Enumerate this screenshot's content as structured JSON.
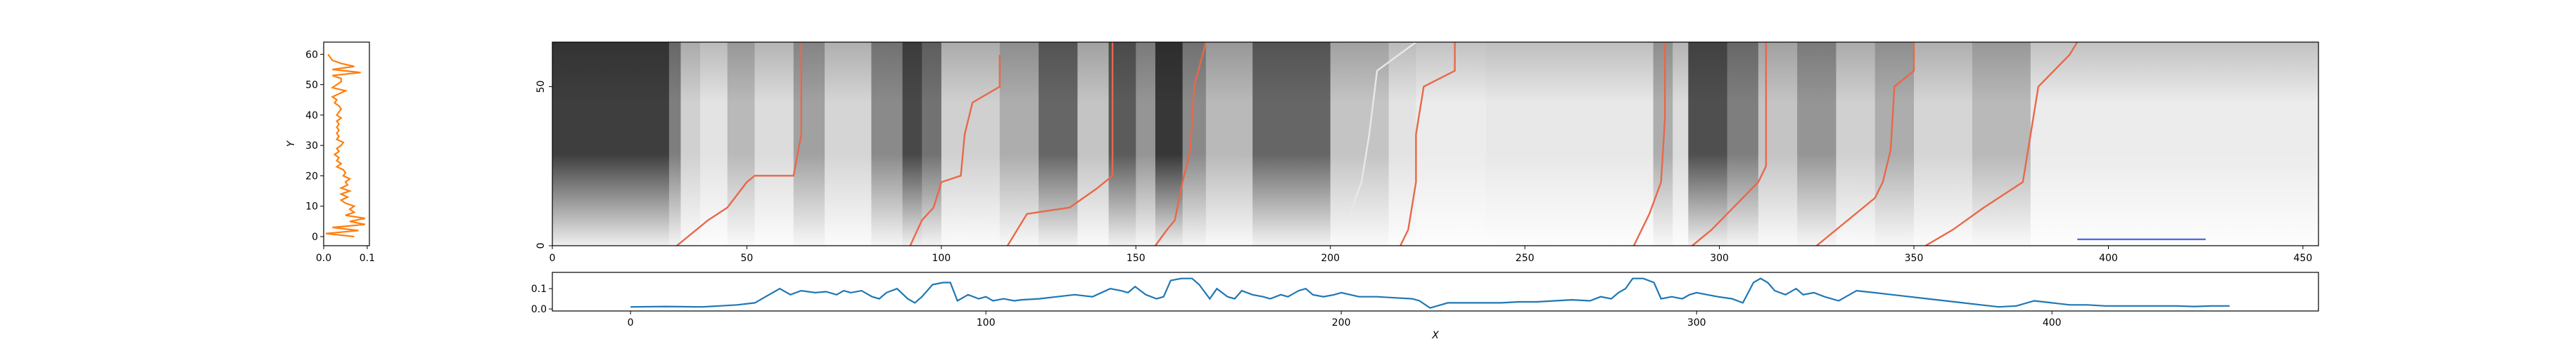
{
  "chart_data": [
    {
      "type": "line",
      "panel": "left marginal profile",
      "orientation": "vertical",
      "ylabel": "Y",
      "xlabel": "",
      "xlim": [
        0.0,
        0.105
      ],
      "ylim": [
        -3,
        64
      ],
      "xticks": [
        "0.0",
        "0.1"
      ],
      "yticks": [
        "0",
        "10",
        "20",
        "30",
        "40",
        "50",
        "60"
      ],
      "color": "#ff7f0e",
      "series": [
        {
          "x": [
            0.07,
            0.005,
            0.08,
            0.02,
            0.095,
            0.06,
            0.095,
            0.05,
            0.07,
            0.06,
            0.07,
            0.05,
            0.04,
            0.055,
            0.04,
            0.06,
            0.04,
            0.055,
            0.05,
            0.06,
            0.045,
            0.05,
            0.045,
            0.03,
            0.04,
            0.03,
            0.035,
            0.025,
            0.035,
            0.03,
            0.04,
            0.045,
            0.03,
            0.035,
            0.03,
            0.035,
            0.03,
            0.035,
            0.03,
            0.04,
            0.03,
            0.035,
            0.04,
            0.035,
            0.025,
            0.03,
            0.02,
            0.035,
            0.05,
            0.02,
            0.03,
            0.04,
            0.04,
            0.02,
            0.085,
            0.02,
            0.07,
            0.04,
            0.02,
            0.015,
            0.01
          ],
          "y": [
            0,
            1,
            2,
            3,
            4,
            5,
            6,
            7,
            8,
            9,
            10,
            11,
            12,
            13,
            14,
            15,
            16,
            17,
            18,
            19,
            20,
            21,
            22,
            23,
            24,
            25,
            26,
            27,
            28,
            29,
            30,
            31,
            32,
            33,
            34,
            35,
            36,
            37,
            38,
            39,
            40,
            41,
            42,
            43,
            44,
            45,
            46,
            47,
            48,
            49,
            50,
            51,
            52,
            53,
            54,
            55,
            56,
            57,
            58,
            59,
            60
          ]
        }
      ]
    },
    {
      "type": "heatmap",
      "panel": "main image",
      "colormap": "grayscale",
      "xlim": [
        0,
        454
      ],
      "ylim": [
        0,
        64
      ],
      "xticks": [
        "0",
        "50",
        "100",
        "150",
        "200",
        "250",
        "300",
        "350",
        "400",
        "450"
      ],
      "yticks": [
        "0",
        "50"
      ],
      "bands": [
        {
          "x0": 0,
          "x1": 30,
          "v": 0.82
        },
        {
          "x0": 30,
          "x1": 33,
          "v": 0.55
        },
        {
          "x0": 33,
          "x1": 38,
          "v": 0.2
        },
        {
          "x0": 38,
          "x1": 45,
          "v": 0.12
        },
        {
          "x0": 45,
          "x1": 52,
          "v": 0.3
        },
        {
          "x0": 52,
          "x1": 62,
          "v": 0.15
        },
        {
          "x0": 62,
          "x1": 70,
          "v": 0.4
        },
        {
          "x0": 70,
          "x1": 82,
          "v": 0.18
        },
        {
          "x0": 82,
          "x1": 90,
          "v": 0.5
        },
        {
          "x0": 90,
          "x1": 95,
          "v": 0.78
        },
        {
          "x0": 95,
          "x1": 100,
          "v": 0.6
        },
        {
          "x0": 100,
          "x1": 115,
          "v": 0.2
        },
        {
          "x0": 115,
          "x1": 125,
          "v": 0.35
        },
        {
          "x0": 125,
          "x1": 135,
          "v": 0.65
        },
        {
          "x0": 135,
          "x1": 143,
          "v": 0.25
        },
        {
          "x0": 143,
          "x1": 150,
          "v": 0.7
        },
        {
          "x0": 150,
          "x1": 155,
          "v": 0.45
        },
        {
          "x0": 155,
          "x1": 162,
          "v": 0.85
        },
        {
          "x0": 162,
          "x1": 168,
          "v": 0.5
        },
        {
          "x0": 168,
          "x1": 180,
          "v": 0.3
        },
        {
          "x0": 180,
          "x1": 200,
          "v": 0.65
        },
        {
          "x0": 200,
          "x1": 215,
          "v": 0.25
        },
        {
          "x0": 215,
          "x1": 222,
          "v": 0.12
        },
        {
          "x0": 222,
          "x1": 240,
          "v": 0.08
        },
        {
          "x0": 240,
          "x1": 283,
          "v": 0.1
        },
        {
          "x0": 283,
          "x1": 288,
          "v": 0.35
        },
        {
          "x0": 288,
          "x1": 292,
          "v": 0.15
        },
        {
          "x0": 292,
          "x1": 302,
          "v": 0.75
        },
        {
          "x0": 302,
          "x1": 310,
          "v": 0.55
        },
        {
          "x0": 310,
          "x1": 320,
          "v": 0.25
        },
        {
          "x0": 320,
          "x1": 330,
          "v": 0.45
        },
        {
          "x0": 330,
          "x1": 340,
          "v": 0.2
        },
        {
          "x0": 340,
          "x1": 350,
          "v": 0.35
        },
        {
          "x0": 350,
          "x1": 365,
          "v": 0.18
        },
        {
          "x0": 365,
          "x1": 380,
          "v": 0.3
        },
        {
          "x0": 380,
          "x1": 454,
          "v": 0.08
        }
      ],
      "paths": [
        {
          "color": "#e8684a",
          "points": [
            [
              32,
              0
            ],
            [
              40,
              8
            ],
            [
              45,
              12
            ],
            [
              50,
              20
            ],
            [
              52,
              22
            ],
            [
              62,
              22
            ],
            [
              64,
              35
            ],
            [
              64,
              55
            ],
            [
              64,
              64
            ]
          ]
        },
        {
          "color": "#e8684a",
          "points": [
            [
              92,
              0
            ],
            [
              95,
              8
            ],
            [
              98,
              12
            ],
            [
              100,
              20
            ],
            [
              105,
              22
            ],
            [
              106,
              35
            ],
            [
              108,
              45
            ],
            [
              115,
              50
            ],
            [
              115,
              60
            ]
          ]
        },
        {
          "color": "#e8684a",
          "points": [
            [
              117,
              0
            ],
            [
              122,
              10
            ],
            [
              133,
              12
            ],
            [
              140,
              18
            ],
            [
              144,
              22
            ],
            [
              144,
              64
            ]
          ]
        },
        {
          "color": "#e8684a",
          "points": [
            [
              155,
              0
            ],
            [
              158,
              5
            ],
            [
              160,
              8
            ],
            [
              162,
              20
            ],
            [
              164,
              30
            ],
            [
              165,
              50
            ],
            [
              168,
              64
            ]
          ]
        },
        {
          "color": "#e8e8e8",
          "points": [
            [
              205,
              10
            ],
            [
              208,
              20
            ],
            [
              210,
              35
            ],
            [
              212,
              55
            ],
            [
              222,
              64
            ]
          ]
        },
        {
          "color": "#e8684a",
          "points": [
            [
              218,
              0
            ],
            [
              220,
              5
            ],
            [
              222,
              20
            ],
            [
              222,
              35
            ],
            [
              224,
              50
            ],
            [
              232,
              55
            ],
            [
              232,
              64
            ]
          ]
        },
        {
          "color": "#e8684a",
          "points": [
            [
              278,
              0
            ],
            [
              282,
              10
            ],
            [
              285,
              20
            ],
            [
              286,
              40
            ],
            [
              286,
              64
            ]
          ]
        },
        {
          "color": "#e8684a",
          "points": [
            [
              293,
              0
            ],
            [
              298,
              5
            ],
            [
              302,
              10
            ],
            [
              310,
              20
            ],
            [
              312,
              25
            ],
            [
              312,
              50
            ],
            [
              312,
              64
            ]
          ]
        },
        {
          "color": "#e8684a",
          "points": [
            [
              325,
              0
            ],
            [
              340,
              15
            ],
            [
              342,
              20
            ],
            [
              344,
              30
            ],
            [
              345,
              50
            ],
            [
              350,
              55
            ],
            [
              350,
              64
            ]
          ]
        },
        {
          "color": "#e8684a",
          "points": [
            [
              353,
              0
            ],
            [
              360,
              5
            ],
            [
              368,
              12
            ],
            [
              378,
              20
            ],
            [
              380,
              35
            ],
            [
              382,
              50
            ],
            [
              390,
              60
            ],
            [
              392,
              64
            ]
          ]
        },
        {
          "color": "#4f6de0",
          "points": [
            [
              392,
              2
            ],
            [
              425,
              2
            ]
          ]
        }
      ]
    },
    {
      "type": "line",
      "panel": "bottom marginal profile",
      "xlabel": "X",
      "ylabel": "",
      "xlim": [
        -22,
        475
      ],
      "ylim": [
        -0.01,
        0.18
      ],
      "xticks": [
        "0",
        "100",
        "200",
        "300",
        "400"
      ],
      "yticks": [
        "0.0",
        "0.1"
      ],
      "color": "#1f77b4",
      "series": [
        {
          "x": [
            0,
            10,
            20,
            25,
            30,
            35,
            38,
            42,
            45,
            48,
            52,
            55,
            58,
            60,
            62,
            65,
            68,
            70,
            72,
            75,
            78,
            80,
            82,
            85,
            88,
            90,
            92,
            95,
            98,
            100,
            102,
            105,
            108,
            110,
            115,
            120,
            125,
            130,
            135,
            138,
            140,
            142,
            145,
            148,
            150,
            152,
            155,
            158,
            160,
            163,
            165,
            168,
            170,
            172,
            175,
            178,
            180,
            183,
            185,
            188,
            190,
            192,
            195,
            198,
            200,
            205,
            210,
            215,
            220,
            222,
            225,
            228,
            230,
            235,
            240,
            245,
            250,
            255,
            260,
            265,
            270,
            273,
            276,
            278,
            280,
            282,
            285,
            288,
            290,
            293,
            296,
            298,
            300,
            303,
            306,
            310,
            313,
            316,
            318,
            320,
            322,
            325,
            328,
            330,
            333,
            336,
            340,
            345,
            350,
            355,
            360,
            365,
            370,
            375,
            380,
            385,
            390,
            395,
            400,
            405,
            410,
            415,
            420,
            425,
            430,
            435,
            440,
            445,
            450
          ],
          "y": [
            0.01,
            0.012,
            0.01,
            0.015,
            0.02,
            0.03,
            0.06,
            0.1,
            0.07,
            0.09,
            0.08,
            0.085,
            0.07,
            0.09,
            0.08,
            0.09,
            0.06,
            0.05,
            0.08,
            0.1,
            0.05,
            0.03,
            0.06,
            0.12,
            0.13,
            0.13,
            0.04,
            0.07,
            0.05,
            0.06,
            0.04,
            0.05,
            0.04,
            0.045,
            0.05,
            0.06,
            0.07,
            0.06,
            0.1,
            0.09,
            0.08,
            0.11,
            0.07,
            0.05,
            0.06,
            0.14,
            0.15,
            0.15,
            0.12,
            0.05,
            0.1,
            0.06,
            0.05,
            0.09,
            0.07,
            0.06,
            0.05,
            0.07,
            0.06,
            0.09,
            0.1,
            0.07,
            0.06,
            0.07,
            0.08,
            0.06,
            0.06,
            0.055,
            0.05,
            0.04,
            0.005,
            0.02,
            0.03,
            0.03,
            0.03,
            0.03,
            0.035,
            0.035,
            0.04,
            0.045,
            0.04,
            0.06,
            0.05,
            0.08,
            0.1,
            0.15,
            0.15,
            0.13,
            0.05,
            0.06,
            0.05,
            0.07,
            0.08,
            0.07,
            0.06,
            0.05,
            0.03,
            0.13,
            0.15,
            0.13,
            0.09,
            0.07,
            0.1,
            0.07,
            0.08,
            0.06,
            0.04,
            0.09,
            0.08,
            0.07,
            0.06,
            0.05,
            0.04,
            0.03,
            0.02,
            0.01,
            0.015,
            0.04,
            0.03,
            0.02,
            0.02,
            0.015,
            0.015,
            0.015,
            0.015,
            0.015,
            0.012,
            0.015,
            0.015
          ]
        }
      ]
    }
  ]
}
